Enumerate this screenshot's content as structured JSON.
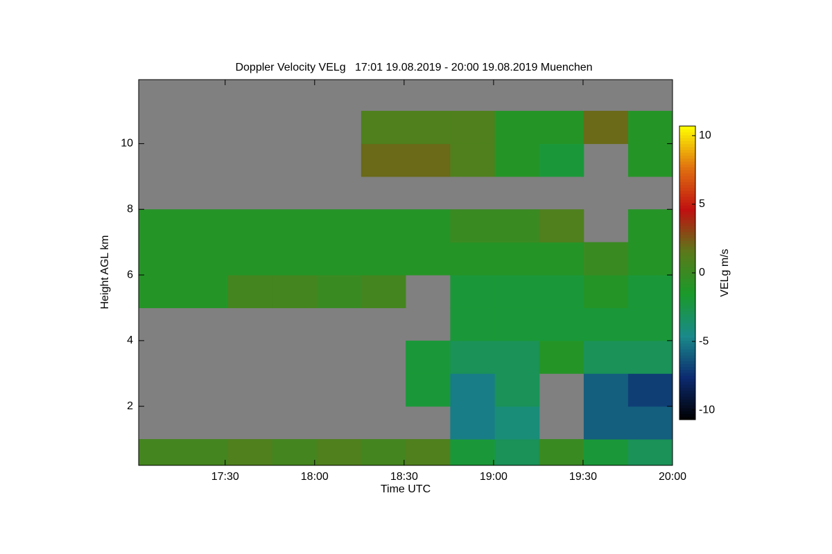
{
  "chart_data": {
    "type": "heatmap",
    "title": "Doppler Velocity VELg   17:01 19.08.2019 - 20:00 19.08.2019 Muenchen",
    "x_label": "Time UTC",
    "y_label": "Height AGL km",
    "colorbar_label": "VELg m/s",
    "x": [
      17.141,
      17.39,
      17.638,
      17.887,
      18.136,
      18.384,
      18.633,
      18.882,
      19.131,
      19.379,
      19.628,
      19.876
    ],
    "y": [
      0.5,
      1.5,
      2.5,
      3.5,
      4.5,
      5.5,
      6.5,
      7.5,
      8.5,
      9.5,
      10.5,
      11.5
    ],
    "z": [
      [
        0.5,
        0.5,
        1,
        0.5,
        1,
        0.5,
        1,
        -2,
        -3,
        0,
        -2,
        -3
      ],
      [
        null,
        null,
        null,
        null,
        null,
        null,
        null,
        -5,
        -4,
        null,
        -6,
        -6
      ],
      [
        null,
        null,
        null,
        null,
        null,
        null,
        -2,
        -5,
        -3,
        null,
        -6,
        -7
      ],
      [
        null,
        null,
        null,
        null,
        null,
        null,
        -2,
        -3,
        -3,
        -1,
        -3,
        -3
      ],
      [
        null,
        null,
        null,
        null,
        null,
        null,
        null,
        -2,
        -2,
        -2,
        -2,
        -2
      ],
      [
        -1,
        -1,
        0.5,
        0.5,
        0,
        0.5,
        null,
        -2,
        -2,
        -2,
        -1,
        -2
      ],
      [
        -1,
        -1,
        -1,
        -1,
        -1,
        -1,
        -1,
        -1,
        -1,
        -1,
        0,
        -1
      ],
      [
        -1,
        -1,
        -1,
        -1,
        -1,
        -1,
        -1,
        0,
        0,
        1,
        null,
        -1
      ],
      [
        null,
        null,
        null,
        null,
        null,
        null,
        null,
        null,
        null,
        null,
        null,
        null
      ],
      [
        null,
        null,
        null,
        null,
        null,
        2,
        2,
        1,
        -1,
        -2,
        null,
        -1
      ],
      [
        null,
        null,
        null,
        null,
        null,
        1,
        1,
        1,
        -1,
        -1,
        2,
        -1
      ],
      [
        null,
        null,
        null,
        null,
        null,
        null,
        null,
        null,
        null,
        null,
        null,
        null
      ]
    ],
    "xlim": [
      17.0167,
      20
    ],
    "xticks": [
      {
        "value": 17.5,
        "label": "17:30"
      },
      {
        "value": 18,
        "label": "18:00"
      },
      {
        "value": 18.5,
        "label": "18:30"
      },
      {
        "value": 19,
        "label": "19:00"
      },
      {
        "value": 19.5,
        "label": "19:30"
      },
      {
        "value": 20,
        "label": "20:00"
      }
    ],
    "ylim": [
      0.2,
      11.95
    ],
    "yticks": [
      2,
      4,
      6,
      8,
      10
    ],
    "clim": [
      -10.7,
      10.7
    ],
    "cticks": [
      -10,
      -5,
      0,
      5,
      10
    ],
    "colormap": [
      "#000000",
      "#0c2a70",
      "#1a8a8a",
      "#1a9a2a",
      "#5a7a1a",
      "#c01010",
      "#e07010",
      "#ffff00"
    ],
    "background_color": "#808080"
  }
}
